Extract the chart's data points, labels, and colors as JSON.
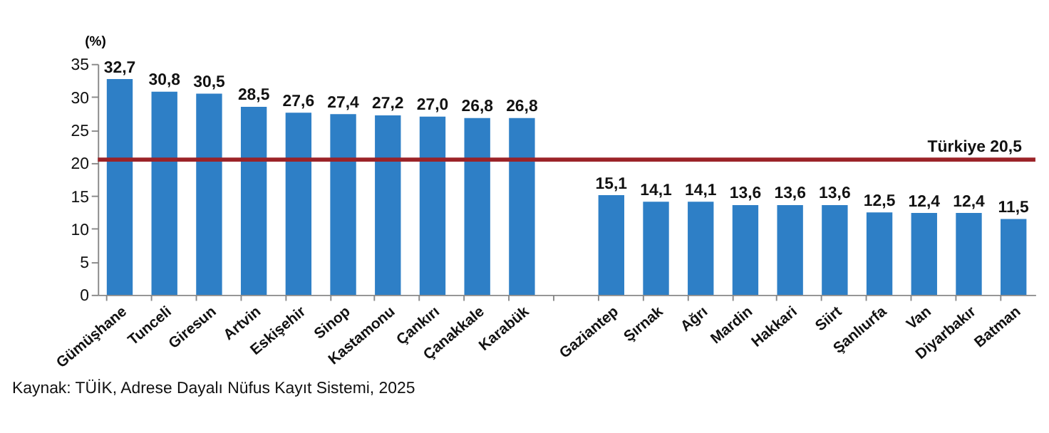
{
  "chart_data": {
    "type": "bar",
    "ylabel": "(%)",
    "categories": [
      "Gümüşhane",
      "Tunceli",
      "Giresun",
      "Artvin",
      "Eskişehir",
      "Sinop",
      "Kastamonu",
      "Çankırı",
      "Çanakkale",
      "Karabük",
      null,
      "Gaziantep",
      "Şırnak",
      "Ağrı",
      "Mardin",
      "Hakkari",
      "Siirt",
      "Şanlıurfa",
      "Van",
      "Diyarbakır",
      "Batman"
    ],
    "values": [
      32.7,
      30.8,
      30.5,
      28.5,
      27.6,
      27.4,
      27.2,
      27.0,
      26.8,
      26.8,
      null,
      15.1,
      14.1,
      14.1,
      13.6,
      13.6,
      13.6,
      12.5,
      12.4,
      12.4,
      11.5
    ],
    "value_labels": [
      "32,7",
      "30,8",
      "30,5",
      "28,5",
      "27,6",
      "27,4",
      "27,2",
      "27,0",
      "26,8",
      "26,8",
      null,
      "15,1",
      "14,1",
      "14,1",
      "13,6",
      "13,6",
      "13,6",
      "12,5",
      "12,4",
      "12,4",
      "11,5"
    ],
    "color": "#2e7fc6",
    "ylim": [
      0,
      35
    ],
    "yticks": [
      0,
      5,
      10,
      15,
      20,
      25,
      30,
      35
    ],
    "grid": false,
    "ref_lines": [
      {
        "axis": "y",
        "value": 20.5,
        "label": "Türkiye  20,5",
        "color": "#9b2328"
      }
    ],
    "annotations": [
      "Kaynak: TÜİK, Adrese Dayalı Nüfus Kayıt Sistemi, 2025"
    ]
  }
}
